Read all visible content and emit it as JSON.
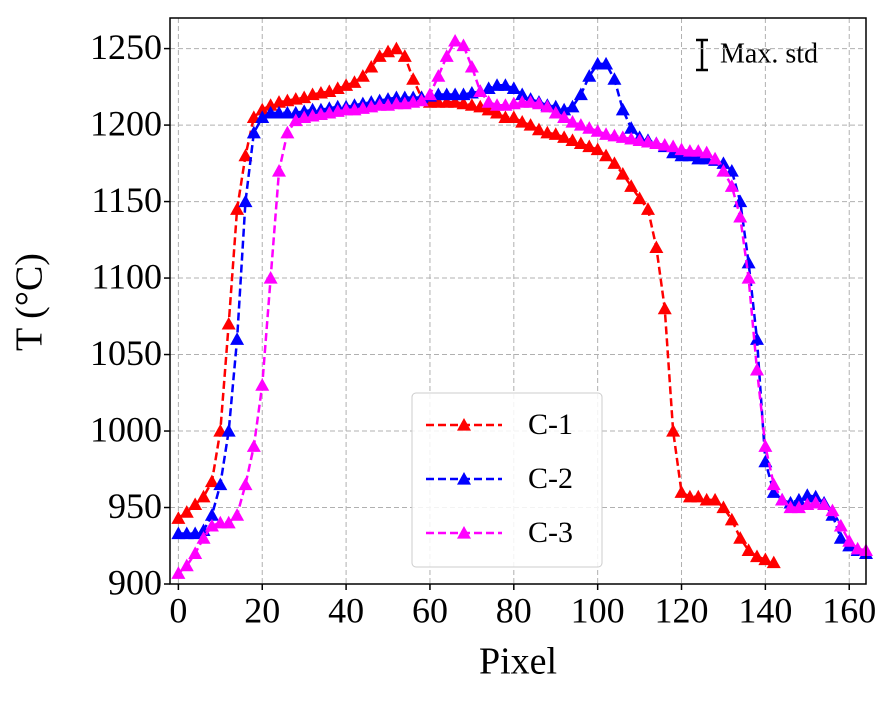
{
  "chart_data": {
    "type": "line",
    "xlabel": "Pixel",
    "ylabel": "T (°C)",
    "annotation": "Max. std",
    "xlim": [
      -2,
      164
    ],
    "xticks": [
      0,
      20,
      40,
      60,
      80,
      100,
      120,
      140,
      160
    ],
    "ylim": [
      900,
      1270
    ],
    "yticks": [
      900,
      950,
      1000,
      1050,
      1100,
      1150,
      1200,
      1250
    ],
    "grid": true,
    "legend": "lower center",
    "x": [
      0,
      2,
      4,
      6,
      8,
      10,
      12,
      14,
      16,
      18,
      20,
      22,
      24,
      26,
      28,
      30,
      32,
      34,
      36,
      38,
      40,
      42,
      44,
      46,
      48,
      50,
      52,
      54,
      56,
      58,
      60,
      62,
      64,
      66,
      68,
      70,
      72,
      74,
      76,
      78,
      80,
      82,
      84,
      86,
      88,
      90,
      92,
      94,
      96,
      98,
      100,
      102,
      104,
      106,
      108,
      110,
      112,
      114,
      116,
      118,
      120,
      122,
      124,
      126,
      128,
      130,
      132,
      134,
      136,
      138,
      140,
      142,
      144,
      146,
      148,
      150,
      152,
      154,
      156,
      158,
      160,
      162,
      164
    ],
    "series": [
      {
        "name": "C-1",
        "color": "#ff0000",
        "values": [
          943,
          947,
          952,
          957,
          967,
          1000,
          1070,
          1145,
          1180,
          1205,
          1210,
          1213,
          1215,
          1216,
          1217,
          1218,
          1220,
          1221,
          1222,
          1224,
          1226,
          1228,
          1232,
          1238,
          1245,
          1248,
          1250,
          1245,
          1230,
          1218,
          1215,
          1215,
          1215,
          1215,
          1214,
          1213,
          1212,
          1210,
          1208,
          1205,
          1205,
          1202,
          1200,
          1197,
          1195,
          1194,
          1192,
          1190,
          1188,
          1186,
          1184,
          1180,
          1175,
          1168,
          1160,
          1152,
          1145,
          1120,
          1080,
          1000,
          960,
          957,
          957,
          955,
          955,
          950,
          942,
          930,
          922,
          918,
          916,
          914,
          null,
          null,
          null,
          null,
          null,
          null,
          null,
          null,
          null,
          null,
          null
        ]
      },
      {
        "name": "C-2",
        "color": "#0000ff",
        "values": [
          933,
          933,
          933,
          935,
          945,
          965,
          1000,
          1060,
          1150,
          1195,
          1205,
          1208,
          1208,
          1208,
          1208,
          1209,
          1210,
          1210,
          1211,
          1212,
          1212,
          1213,
          1214,
          1215,
          1216,
          1217,
          1218,
          1218,
          1218,
          1218,
          1219,
          1220,
          1220,
          1220,
          1220,
          1221,
          1222,
          1224,
          1226,
          1226,
          1224,
          1220,
          1217,
          1215,
          1213,
          1212,
          1210,
          1212,
          1220,
          1232,
          1240,
          1240,
          1230,
          1210,
          1198,
          1192,
          1190,
          1188,
          1186,
          1182,
          1180,
          1180,
          1178,
          1178,
          1177,
          1175,
          1170,
          1150,
          1110,
          1060,
          980,
          960,
          955,
          953,
          955,
          958,
          957,
          953,
          945,
          930,
          925,
          922,
          920
        ]
      },
      {
        "name": "C-3",
        "color": "#ff00ff",
        "values": [
          907,
          912,
          920,
          930,
          938,
          940,
          940,
          945,
          965,
          990,
          1030,
          1100,
          1170,
          1195,
          1203,
          1205,
          1206,
          1207,
          1208,
          1209,
          1210,
          1210,
          1211,
          1212,
          1213,
          1213,
          1214,
          1214,
          1215,
          1216,
          1220,
          1232,
          1245,
          1255,
          1252,
          1238,
          1222,
          1215,
          1213,
          1213,
          1214,
          1215,
          1215,
          1214,
          1212,
          1208,
          1205,
          1202,
          1200,
          1198,
          1196,
          1194,
          1193,
          1192,
          1191,
          1190,
          1189,
          1188,
          1187,
          1186,
          1184,
          1183,
          1183,
          1182,
          1178,
          1170,
          1160,
          1140,
          1100,
          1040,
          990,
          965,
          955,
          950,
          950,
          952,
          953,
          952,
          948,
          938,
          928,
          923,
          922
        ]
      }
    ]
  }
}
